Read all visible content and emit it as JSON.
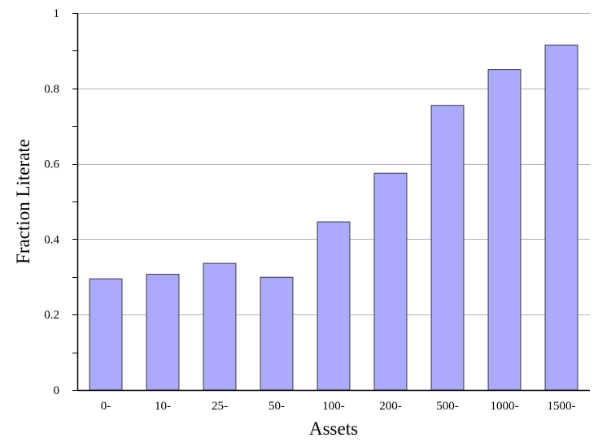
{
  "chart_data": {
    "type": "bar",
    "title": "",
    "xlabel": "Assets",
    "ylabel": "Fraction Literate",
    "categories": [
      "0-",
      "10-",
      "25-",
      "50-",
      "100-",
      "200-",
      "500-",
      "1000-",
      "1500-"
    ],
    "values": [
      0.295,
      0.307,
      0.336,
      0.299,
      0.446,
      0.575,
      0.755,
      0.85,
      0.915
    ],
    "ylim": [
      0,
      1
    ],
    "yticks": [
      0,
      0.2,
      0.4,
      0.6,
      0.8,
      1
    ],
    "ytick_labels": [
      "0",
      "0.2",
      "0.4",
      "0.6",
      "0.8",
      "1"
    ],
    "grid": true,
    "legend": "none",
    "colors": {
      "bar_fill": "#aaaaff",
      "bar_stroke": "#3a3a3a",
      "grid": "#b4b4b4",
      "axis": "#000000"
    }
  }
}
